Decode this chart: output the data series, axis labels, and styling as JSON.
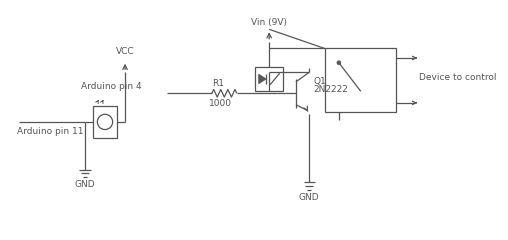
{
  "bg_color": "#ffffff",
  "line_color": "#555555",
  "text_color": "#555555",
  "font_size": 6.5,
  "fig_width": 5.08,
  "fig_height": 2.4,
  "dpi": 100,
  "labels": {
    "vcc": "VCC",
    "gnd1": "GND",
    "gnd2": "GND",
    "vin": "Vin (9V)",
    "arduino_pin11": "Arduino pin 11",
    "arduino_pin4": "Arduino pin 4",
    "r1": "R1",
    "r1_val": "1000",
    "q1": "Q1",
    "q1_val": "2N2222",
    "device": "Device to control"
  }
}
